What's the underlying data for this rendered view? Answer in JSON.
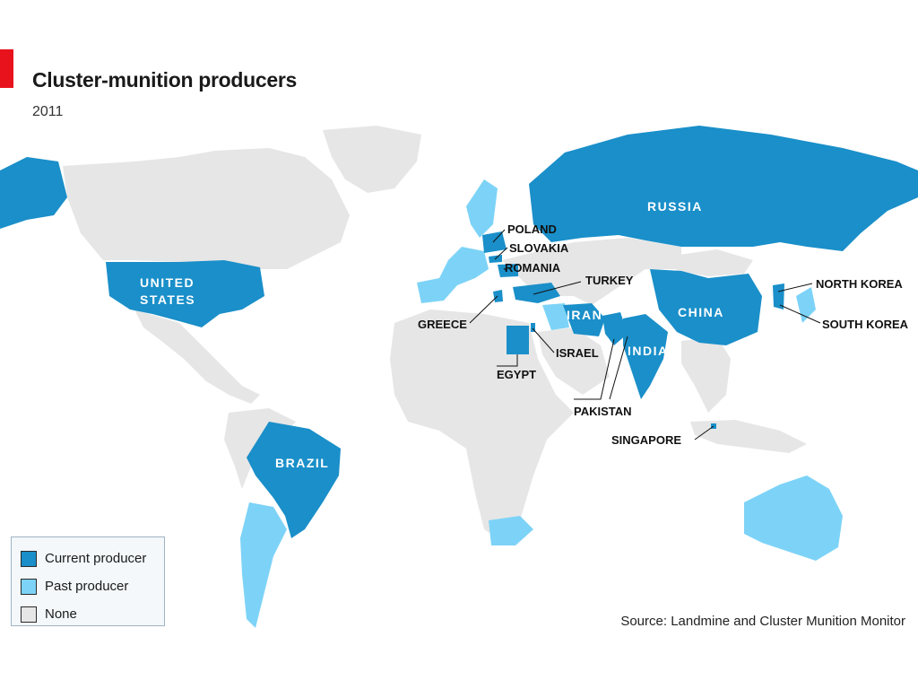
{
  "header": {
    "title": "Cluster-munition producers",
    "subtitle": "2011"
  },
  "colors": {
    "current": "#1a8fc9",
    "past": "#7dd3f7",
    "none": "#e6e6e6",
    "ocean": "#ffffff",
    "accent": "#e8121d"
  },
  "legend": {
    "items": [
      {
        "label": "Current producer",
        "status": "current"
      },
      {
        "label": "Past producer",
        "status": "past"
      },
      {
        "label": "None",
        "status": "none"
      }
    ]
  },
  "source": "Source: Landmine and Cluster Munition Monitor",
  "labels": {
    "russia": "RUSSIA",
    "united_states_1": "UNITED",
    "united_states_2": "STATES",
    "china": "CHINA",
    "brazil": "BRAZIL",
    "iran": "IRAN",
    "india": "INDIA",
    "poland": "POLAND",
    "slovakia": "SLOVAKIA",
    "romania": "ROMANIA",
    "turkey": "TURKEY",
    "greece": "GREECE",
    "israel": "ISRAEL",
    "egypt": "EGYPT",
    "pakistan": "PAKISTAN",
    "singapore": "SINGAPORE",
    "north_korea": "NORTH KOREA",
    "south_korea": "SOUTH KOREA"
  },
  "countries": {
    "current": [
      "Russia",
      "United States",
      "China",
      "Brazil",
      "Iran",
      "India",
      "Poland",
      "Slovakia",
      "Romania",
      "Turkey",
      "Greece",
      "Israel",
      "Egypt",
      "Pakistan",
      "Singapore",
      "North Korea",
      "South Korea"
    ],
    "past": [
      "Argentina",
      "Chile",
      "Australia",
      "South Africa",
      "Sweden",
      "Norway",
      "United Kingdom",
      "France",
      "Spain",
      "Italy",
      "Germany",
      "Iraq",
      "Japan"
    ]
  }
}
